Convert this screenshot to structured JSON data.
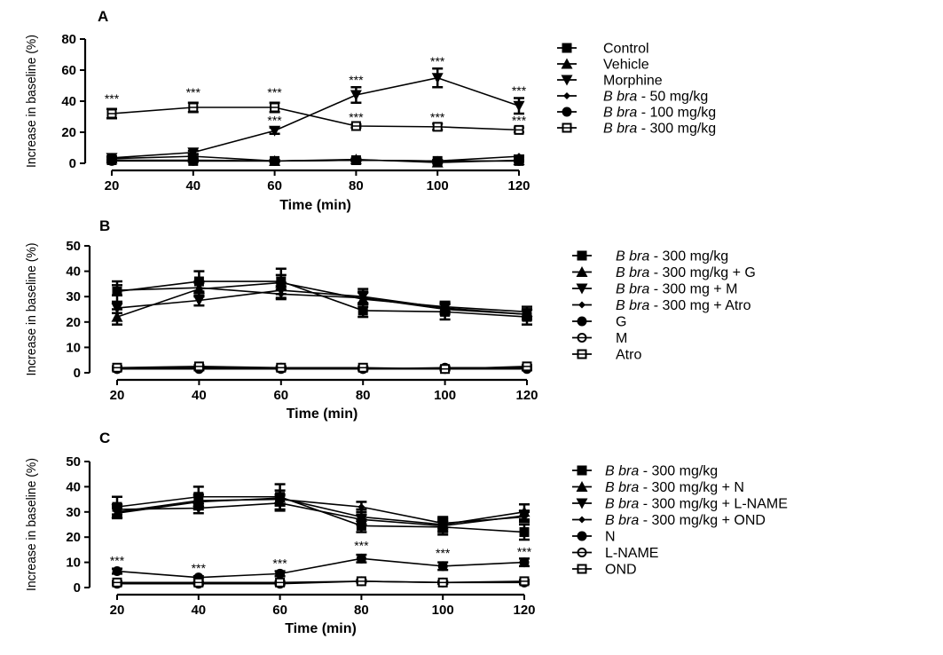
{
  "chart_data": [
    {
      "type": "line",
      "panel_label": "A",
      "xlabel": "Time (min)",
      "ylabel": "Increase in baseline (%)",
      "x": [
        20,
        40,
        60,
        80,
        100,
        120
      ],
      "xlim": [
        20,
        120
      ],
      "ylim": [
        0,
        80
      ],
      "yticks": [
        0,
        20,
        40,
        60,
        80
      ],
      "legend_position": "right",
      "series": [
        {
          "name": "Control",
          "label_parts": [
            [
              "Control",
              false
            ]
          ],
          "marker": "square",
          "values": [
            2,
            1.5,
            1.5,
            2,
            1.5,
            1.5
          ],
          "errors": [
            0.5,
            0.5,
            0.5,
            0.5,
            0.5,
            0.5
          ]
        },
        {
          "name": "Vehicle",
          "label_parts": [
            [
              "Vehicle",
              false
            ]
          ],
          "marker": "triangle-up",
          "values": [
            3,
            4.5,
            1.5,
            2.5,
            0.5,
            2
          ],
          "errors": [
            1,
            1,
            0.5,
            0.5,
            0.5,
            0.5
          ]
        },
        {
          "name": "Morphine",
          "label_parts": [
            [
              "Morphine",
              false
            ]
          ],
          "marker": "triangle-down",
          "values": [
            3.5,
            7,
            21,
            44,
            55,
            37
          ],
          "errors": [
            1,
            1,
            2,
            5,
            6,
            5
          ]
        },
        {
          "name": "B bra - 50 mg/kg",
          "label_parts": [
            [
              "B bra",
              true
            ],
            [
              " - 50 mg/kg",
              false
            ]
          ],
          "marker": "diamond",
          "values": [
            2,
            2,
            1.5,
            2,
            1.5,
            4.5
          ],
          "errors": [
            0.5,
            0.5,
            0.5,
            0.5,
            0.5,
            0.5
          ]
        },
        {
          "name": "B bra - 100 mg/kg",
          "label_parts": [
            [
              "B bra",
              true
            ],
            [
              " - 100 mg/kg",
              false
            ]
          ],
          "marker": "circle",
          "values": [
            1.5,
            1.5,
            1.5,
            2,
            1.5,
            1.5
          ],
          "errors": [
            0.5,
            0.5,
            0.5,
            0.5,
            0.5,
            0.5
          ]
        },
        {
          "name": "B bra - 300 mg/kg",
          "label_parts": [
            [
              "B bra",
              true
            ],
            [
              " - 300 mg/kg",
              false
            ]
          ],
          "marker": "open-square",
          "values": [
            32,
            36,
            36,
            24,
            23.5,
            21.5
          ],
          "errors": [
            3,
            3,
            3,
            1,
            2,
            1.5
          ]
        }
      ],
      "significance": [
        {
          "text": "***",
          "x": 20,
          "y": 39
        },
        {
          "text": "***",
          "x": 40,
          "y": 43
        },
        {
          "text": "***",
          "x": 60,
          "y": 43
        },
        {
          "text": "***",
          "x": 60,
          "y": 25
        },
        {
          "text": "***",
          "x": 80,
          "y": 51
        },
        {
          "text": "***",
          "x": 80,
          "y": 27
        },
        {
          "text": "***",
          "x": 100,
          "y": 63
        },
        {
          "text": "***",
          "x": 100,
          "y": 27
        },
        {
          "text": "***",
          "x": 120,
          "y": 44
        },
        {
          "text": "***",
          "x": 120,
          "y": 25
        }
      ]
    },
    {
      "type": "line",
      "panel_label": "B",
      "xlabel": "Time (min)",
      "ylabel": "Increase in baseline (%)",
      "x": [
        20,
        40,
        60,
        80,
        100,
        120
      ],
      "xlim": [
        20,
        120
      ],
      "ylim": [
        0,
        50
      ],
      "yticks": [
        0,
        10,
        20,
        30,
        40,
        50
      ],
      "legend_position": "right",
      "series": [
        {
          "name": "B bra - 300 mg/kg",
          "label_parts": [
            [
              "B bra",
              true
            ],
            [
              " - 300 mg/kg",
              false
            ]
          ],
          "marker": "square",
          "values": [
            32,
            36,
            36,
            24.5,
            24,
            22
          ],
          "errors": [
            4,
            4,
            5,
            2.5,
            3,
            3
          ]
        },
        {
          "name": "B bra - 300 mg/kg + G",
          "label_parts": [
            [
              "B bra",
              true
            ],
            [
              " - 300 mg/kg + G",
              false
            ]
          ],
          "marker": "triangle-up",
          "values": [
            22,
            33,
            35.5,
            29,
            26,
            24
          ],
          "errors": [
            3,
            3,
            3,
            3,
            2,
            2
          ]
        },
        {
          "name": "B bra - 300 mg + M",
          "label_parts": [
            [
              "B bra",
              true
            ],
            [
              " - 300 mg + M",
              false
            ]
          ],
          "marker": "triangle-down",
          "values": [
            25.5,
            28.5,
            32.5,
            30,
            25.5,
            23
          ],
          "errors": [
            2,
            2,
            3,
            3,
            2,
            2
          ]
        },
        {
          "name": "B bra - 300 mg + Atro",
          "label_parts": [
            [
              "B bra",
              true
            ],
            [
              " - 300 mg + Atro",
              false
            ]
          ],
          "marker": "diamond",
          "values": [
            32.5,
            33.5,
            31,
            29.5,
            25,
            23
          ],
          "errors": [
            2,
            2,
            2,
            2,
            2,
            2
          ]
        },
        {
          "name": "G",
          "label_parts": [
            [
              "G",
              false
            ]
          ],
          "marker": "circle",
          "values": [
            1.5,
            1.5,
            1.5,
            1.5,
            1.5,
            1.5
          ],
          "errors": [
            0.5,
            0.5,
            0.5,
            0.5,
            0.5,
            0.5
          ]
        },
        {
          "name": "M",
          "label_parts": [
            [
              "M",
              false
            ]
          ],
          "marker": "open-circle",
          "values": [
            1.5,
            2,
            2,
            1.5,
            2,
            2
          ],
          "errors": [
            0.5,
            0.5,
            0.5,
            0.5,
            0.5,
            0.5
          ]
        },
        {
          "name": "Atro",
          "label_parts": [
            [
              "Atro",
              false
            ]
          ],
          "marker": "open-square",
          "values": [
            2,
            2.5,
            2,
            2,
            1.5,
            2.5
          ],
          "errors": [
            0.5,
            0.5,
            0.5,
            0.5,
            0.5,
            0.5
          ]
        }
      ],
      "significance": []
    },
    {
      "type": "line",
      "panel_label": "C",
      "xlabel": "Time (min)",
      "ylabel": "Increase in baseline (%)",
      "x": [
        20,
        40,
        60,
        80,
        100,
        120
      ],
      "xlim": [
        20,
        120
      ],
      "ylim": [
        0,
        50
      ],
      "yticks": [
        0,
        10,
        20,
        30,
        40,
        50
      ],
      "legend_position": "right",
      "series": [
        {
          "name": "B bra - 300 mg/kg",
          "label_parts": [
            [
              "B bra",
              true
            ],
            [
              " - 300 mg/kg",
              false
            ]
          ],
          "marker": "square",
          "values": [
            32,
            36,
            36,
            24.5,
            24,
            22
          ],
          "errors": [
            4,
            4,
            5,
            2.5,
            3,
            3
          ]
        },
        {
          "name": "B bra - 300 mg/kg + N",
          "label_parts": [
            [
              "B bra",
              true
            ],
            [
              " - 300 mg/kg + N",
              false
            ]
          ],
          "marker": "triangle-up",
          "values": [
            29.5,
            34,
            35.5,
            28,
            25,
            30
          ],
          "errors": [
            2,
            3,
            3,
            3,
            3,
            3
          ]
        },
        {
          "name": "B bra - 300 mg/kg + L-NAME",
          "label_parts": [
            [
              "B bra",
              true
            ],
            [
              " - 300 mg/kg + L-NAME",
              false
            ]
          ],
          "marker": "triangle-down",
          "values": [
            31,
            31.5,
            33.5,
            27,
            24.5,
            28.5
          ],
          "errors": [
            2,
            2,
            3,
            2,
            2,
            2
          ]
        },
        {
          "name": "B bra - 300 mg/kg + OND",
          "label_parts": [
            [
              "B bra",
              true
            ],
            [
              " - 300 mg/kg + OND",
              false
            ]
          ],
          "marker": "diamond",
          "values": [
            30,
            34.5,
            35,
            32,
            25.5,
            28
          ],
          "errors": [
            2,
            2,
            2,
            2,
            2,
            2
          ]
        },
        {
          "name": "N",
          "label_parts": [
            [
              "N",
              false
            ]
          ],
          "marker": "circle",
          "values": [
            6.5,
            4,
            5.5,
            11.5,
            8.5,
            10
          ],
          "errors": [
            1,
            0.5,
            1,
            1.5,
            1.5,
            1.5
          ]
        },
        {
          "name": "L-NAME",
          "label_parts": [
            [
              "L-NAME",
              false
            ]
          ],
          "marker": "open-circle",
          "values": [
            1.5,
            1.5,
            1.5,
            2.5,
            2,
            2
          ],
          "errors": [
            0.5,
            0.5,
            0.5,
            0.5,
            0.5,
            0.5
          ]
        },
        {
          "name": "OND",
          "label_parts": [
            [
              "OND",
              false
            ]
          ],
          "marker": "open-square",
          "values": [
            2,
            2,
            2,
            2.5,
            2,
            2.5
          ],
          "errors": [
            0.5,
            0.5,
            0.5,
            0.5,
            0.5,
            0.5
          ]
        }
      ],
      "significance": [
        {
          "text": "***",
          "x": 20,
          "y": 9
        },
        {
          "text": "***",
          "x": 40,
          "y": 6
        },
        {
          "text": "***",
          "x": 60,
          "y": 8
        },
        {
          "text": "***",
          "x": 80,
          "y": 15
        },
        {
          "text": "***",
          "x": 100,
          "y": 12
        },
        {
          "text": "***",
          "x": 120,
          "y": 12.5
        }
      ]
    }
  ]
}
